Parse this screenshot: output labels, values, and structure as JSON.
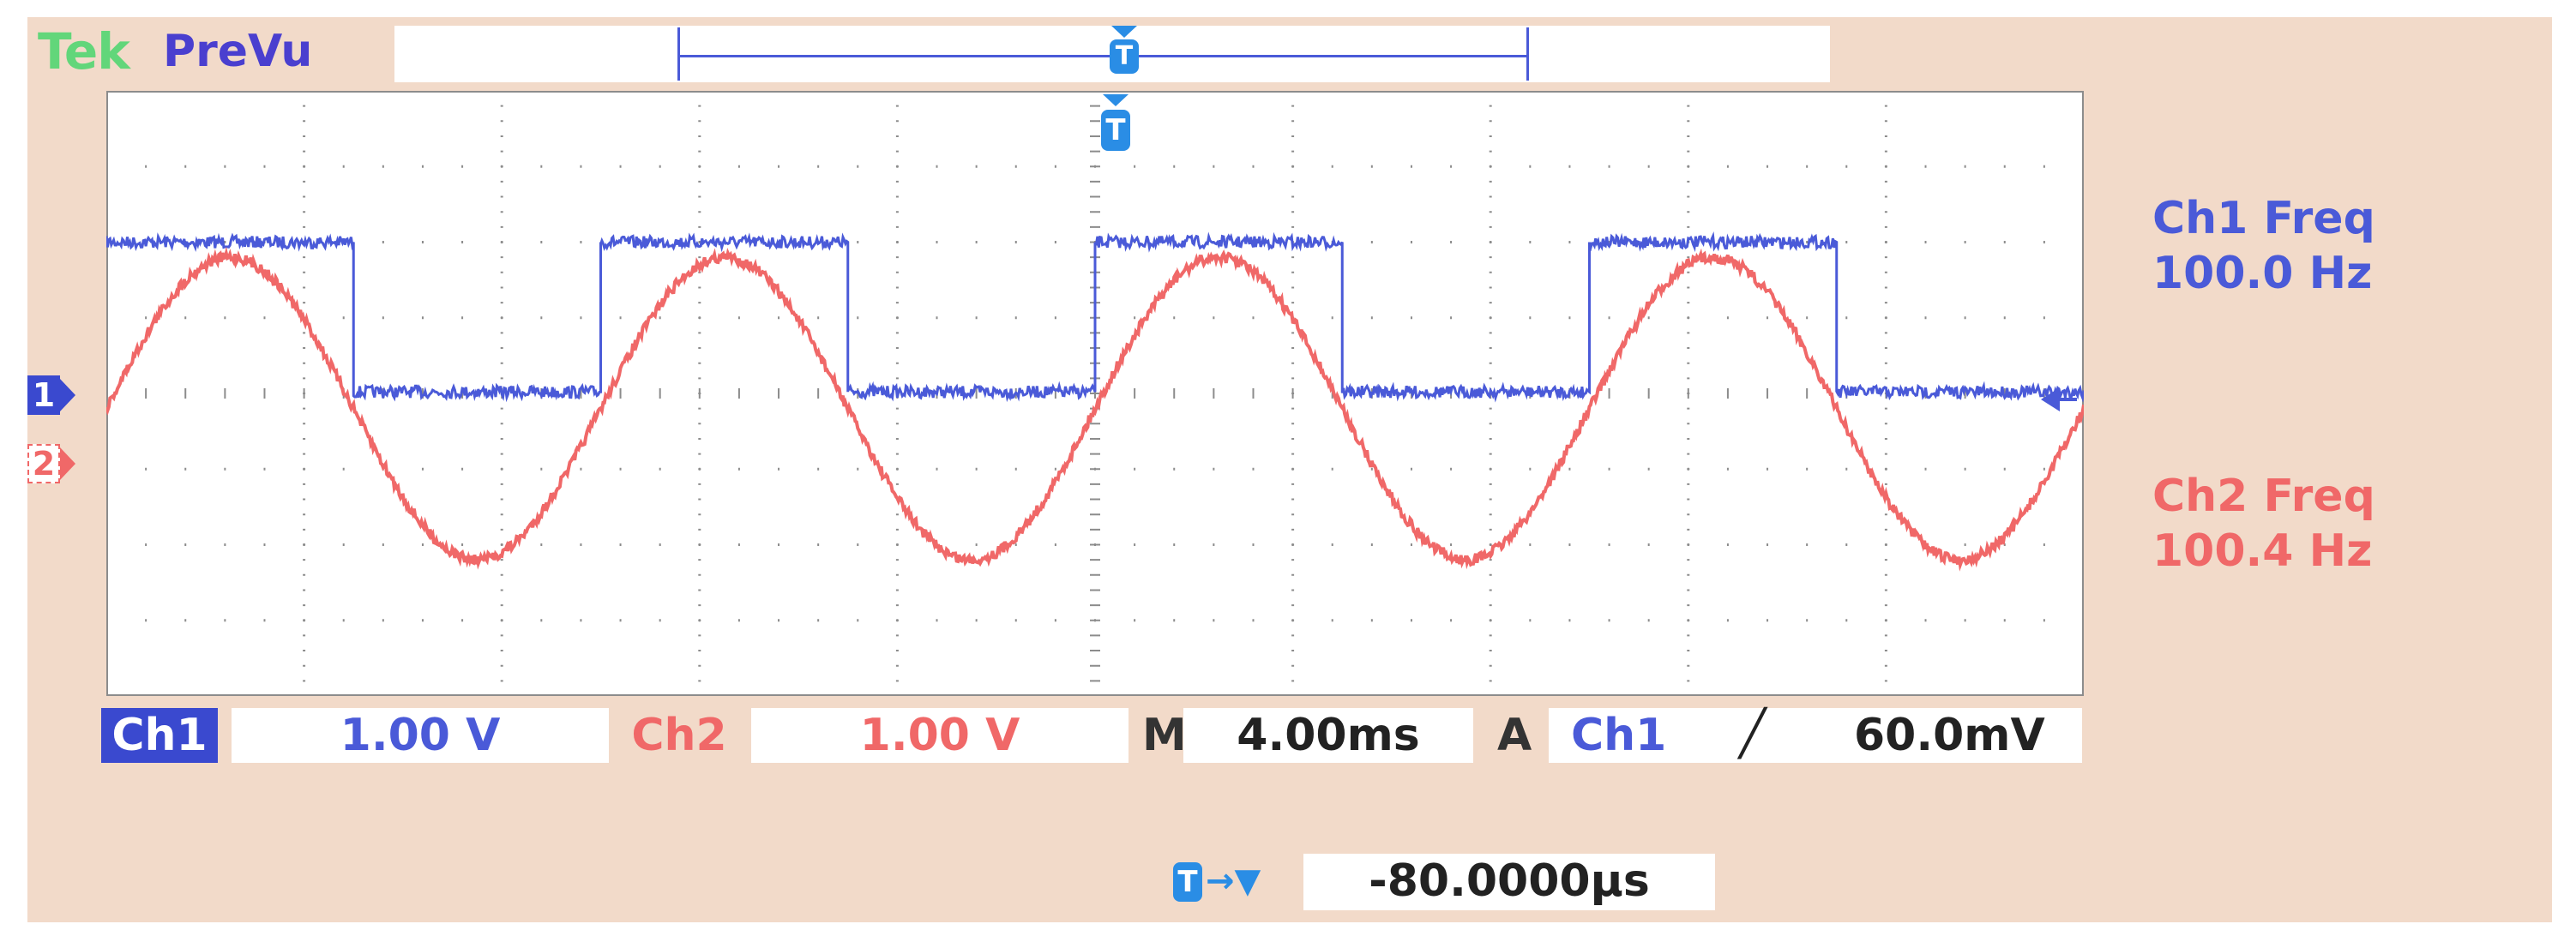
{
  "header": {
    "brand": "Tek",
    "mode": "PreVu",
    "trigger_marker": "T"
  },
  "measurements": {
    "ch1_label": "Ch1 Freq",
    "ch1_value": "100.0 Hz",
    "ch2_label": "Ch2 Freq",
    "ch2_value": "100.4 Hz"
  },
  "markers": {
    "ch1": "1",
    "ch2": "2"
  },
  "status": {
    "ch1_label": "Ch1",
    "ch1_scale": "1.00 V",
    "ch2_label": "Ch2",
    "ch2_scale": "1.00 V",
    "time_label": "M",
    "time_scale": "4.00ms",
    "acq_label": "A",
    "trigger_source": "Ch1",
    "trigger_slope_icon": "rising-edge-icon",
    "trigger_slope_glyph": "╱",
    "trigger_level": "60.0mV",
    "trigger_position_marker": "T",
    "trigger_position_arrow": "→▼",
    "trigger_position": "-80.0000µs"
  },
  "chart_data": {
    "type": "line",
    "title": "",
    "xlabel": "",
    "ylabel": "",
    "x_divisions": 10,
    "y_divisions": 8,
    "xlim": [
      -20.0,
      20.0
    ],
    "x_unit": "ms",
    "ylim": [
      -4.0,
      4.0
    ],
    "y_unit": "V",
    "series": [
      {
        "name": "Ch1",
        "color": "#4a5ad8",
        "shape": "square",
        "frequency_hz": 100.0,
        "high_v": 2.0,
        "low_v": 0.02,
        "rising_edge_ms": [
          -20.0,
          -10.0,
          0.0,
          10.0
        ],
        "falling_edge_ms": [
          -15.0,
          -5.0,
          5.0,
          15.0
        ]
      },
      {
        "name": "Ch2",
        "color": "#f06868",
        "shape": "sine",
        "frequency_hz": 100.4,
        "offset_v": -0.2,
        "amplitude_v": 2.0,
        "peak_ms": [
          -17.5,
          -7.5,
          2.5,
          12.5
        ],
        "trough_ms": [
          -12.5,
          -2.5,
          7.5,
          17.5
        ]
      }
    ]
  }
}
